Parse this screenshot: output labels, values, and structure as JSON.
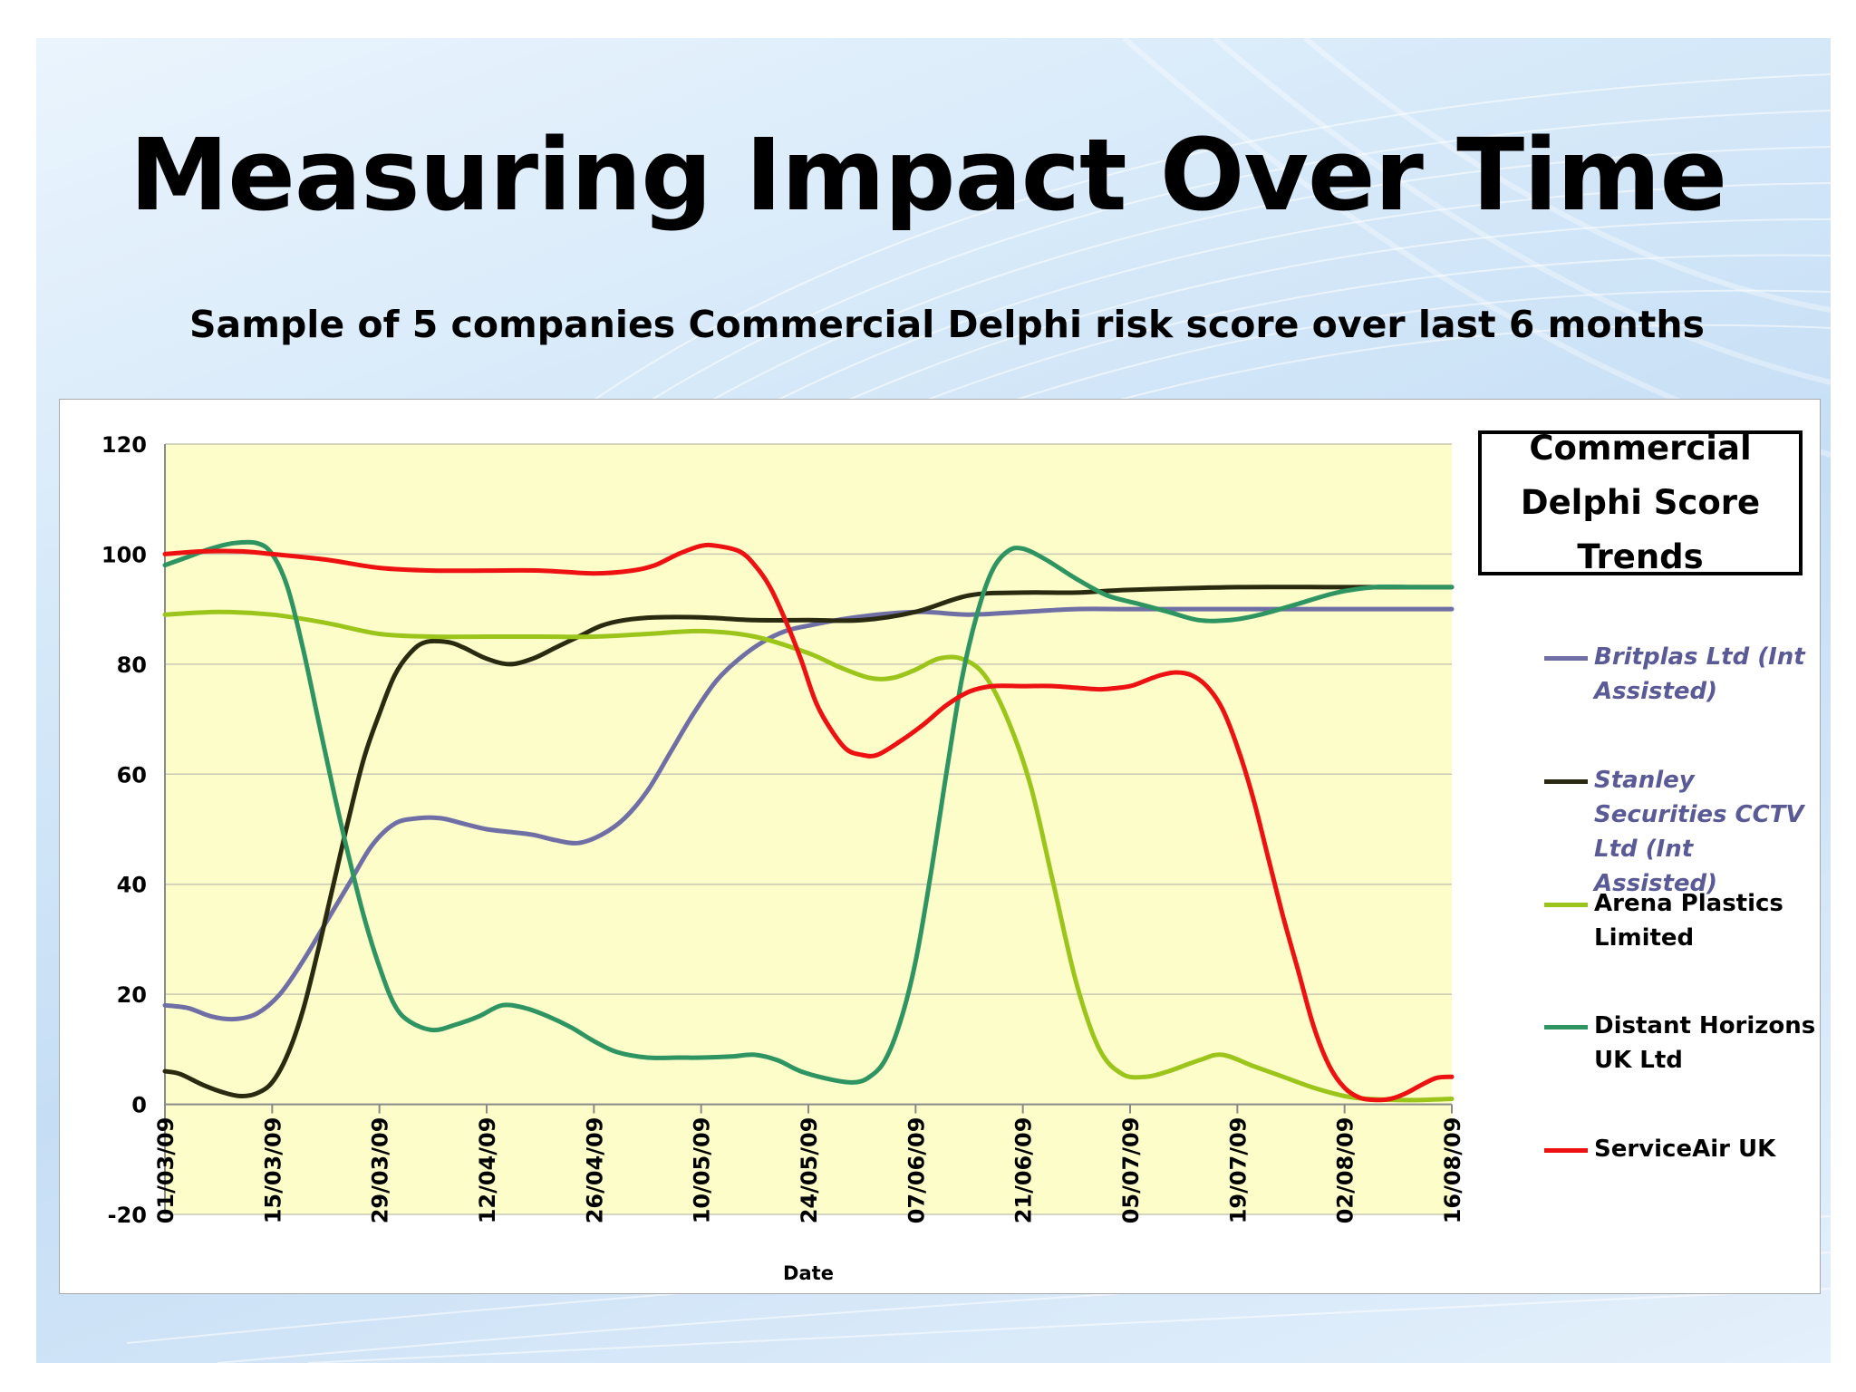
{
  "title": "Measuring Impact Over Time",
  "subtitle": "Sample of 5 companies Commercial Delphi risk score over last 6 months",
  "legend": {
    "title": "Commercial Delphi Score Trends"
  },
  "colors": {
    "plot_background": "#fdfdc9",
    "grid": "#c8c8b4",
    "britplas": "#6f6fa6",
    "stanley": "#2a2a10",
    "arena": "#9cc51c",
    "distant": "#2e9462",
    "serviceair": "#ee1111"
  },
  "chart_data": {
    "type": "line",
    "xlabel": "Date",
    "ylabel": "",
    "ylim": [
      -20,
      120
    ],
    "yticks": [
      -20,
      0,
      20,
      40,
      60,
      80,
      100,
      120
    ],
    "xticks": [
      "01/03/09",
      "15/03/09",
      "29/03/09",
      "12/04/09",
      "26/04/09",
      "10/05/09",
      "24/05/09",
      "07/06/09",
      "21/06/09",
      "05/07/09",
      "19/07/09",
      "02/08/09",
      "16/08/09"
    ],
    "x_range": [
      "01/03/09",
      "16/08/09"
    ],
    "grid": true,
    "legend_position": "right",
    "series": [
      {
        "name": "Britplas Ltd (Int Assisted)",
        "label_style": "italic",
        "color": "#6f6fa6",
        "points": [
          [
            "01/03/09",
            18
          ],
          [
            "04/03/09",
            17.5
          ],
          [
            "07/03/09",
            16
          ],
          [
            "10/03/09",
            15.5
          ],
          [
            "13/03/09",
            16.5
          ],
          [
            "16/03/09",
            20
          ],
          [
            "19/03/09",
            26
          ],
          [
            "22/03/09",
            33
          ],
          [
            "25/03/09",
            40
          ],
          [
            "28/03/09",
            47
          ],
          [
            "31/03/09",
            51
          ],
          [
            "03/04/09",
            52
          ],
          [
            "06/04/09",
            52
          ],
          [
            "09/04/09",
            51
          ],
          [
            "12/04/09",
            50
          ],
          [
            "15/04/09",
            49.5
          ],
          [
            "18/04/09",
            49
          ],
          [
            "21/04/09",
            48
          ],
          [
            "24/04/09",
            47.5
          ],
          [
            "27/04/09",
            49
          ],
          [
            "30/04/09",
            52
          ],
          [
            "03/05/09",
            57
          ],
          [
            "06/05/09",
            64
          ],
          [
            "09/05/09",
            71
          ],
          [
            "12/05/09",
            77
          ],
          [
            "15/05/09",
            81
          ],
          [
            "18/05/09",
            84
          ],
          [
            "21/05/09",
            86
          ],
          [
            "24/05/09",
            87
          ],
          [
            "30/05/09",
            88.5
          ],
          [
            "07/06/09",
            89.5
          ],
          [
            "14/06/09",
            89
          ],
          [
            "21/06/09",
            89.5
          ],
          [
            "28/06/09",
            90
          ],
          [
            "05/07/09",
            90
          ],
          [
            "19/07/09",
            90
          ],
          [
            "02/08/09",
            90
          ],
          [
            "16/08/09",
            90
          ]
        ]
      },
      {
        "name": "Stanley Securities CCTV Ltd (Int Assisted)",
        "label_style": "italic",
        "color": "#2a2a10",
        "points": [
          [
            "01/03/09",
            6
          ],
          [
            "03/03/09",
            5.5
          ],
          [
            "06/03/09",
            3.5
          ],
          [
            "09/03/09",
            2
          ],
          [
            "11/03/09",
            1.5
          ],
          [
            "13/03/09",
            2
          ],
          [
            "15/03/09",
            4
          ],
          [
            "17/03/09",
            9
          ],
          [
            "19/03/09",
            17
          ],
          [
            "21/03/09",
            28
          ],
          [
            "23/03/09",
            40
          ],
          [
            "25/03/09",
            52
          ],
          [
            "27/03/09",
            63
          ],
          [
            "29/03/09",
            71
          ],
          [
            "31/03/09",
            78
          ],
          [
            "02/04/09",
            82
          ],
          [
            "04/04/09",
            84
          ],
          [
            "07/04/09",
            84
          ],
          [
            "09/04/09",
            83
          ],
          [
            "12/04/09",
            81
          ],
          [
            "15/04/09",
            80
          ],
          [
            "18/04/09",
            81
          ],
          [
            "21/04/09",
            83
          ],
          [
            "24/04/09",
            85
          ],
          [
            "27/04/09",
            87
          ],
          [
            "30/04/09",
            88
          ],
          [
            "04/05/09",
            88.5
          ],
          [
            "10/05/09",
            88.5
          ],
          [
            "17/05/09",
            88
          ],
          [
            "24/05/09",
            88
          ],
          [
            "31/05/09",
            88
          ],
          [
            "07/06/09",
            89.5
          ],
          [
            "14/06/09",
            92.5
          ],
          [
            "21/06/09",
            93
          ],
          [
            "28/06/09",
            93
          ],
          [
            "05/07/09",
            93.5
          ],
          [
            "19/07/09",
            94
          ],
          [
            "02/08/09",
            94
          ],
          [
            "16/08/09",
            94
          ]
        ]
      },
      {
        "name": "Arena Plastics Limited",
        "label_style": "normal",
        "color": "#9cc51c",
        "points": [
          [
            "01/03/09",
            89
          ],
          [
            "08/03/09",
            89.5
          ],
          [
            "15/03/09",
            89
          ],
          [
            "22/03/09",
            87.5
          ],
          [
            "29/03/09",
            85.5
          ],
          [
            "05/04/09",
            85
          ],
          [
            "12/04/09",
            85
          ],
          [
            "19/04/09",
            85
          ],
          [
            "26/04/09",
            85
          ],
          [
            "03/05/09",
            85.5
          ],
          [
            "10/05/09",
            86
          ],
          [
            "17/05/09",
            85
          ],
          [
            "24/05/09",
            82
          ],
          [
            "28/05/09",
            79.5
          ],
          [
            "01/06/09",
            77.5
          ],
          [
            "04/06/09",
            77.5
          ],
          [
            "07/06/09",
            79
          ],
          [
            "10/06/09",
            81
          ],
          [
            "13/06/09",
            81
          ],
          [
            "16/06/09",
            78
          ],
          [
            "19/06/09",
            70
          ],
          [
            "22/06/09",
            58
          ],
          [
            "25/06/09",
            40
          ],
          [
            "28/06/09",
            22
          ],
          [
            "01/07/09",
            10
          ],
          [
            "04/07/09",
            5.5
          ],
          [
            "07/07/09",
            5
          ],
          [
            "10/07/09",
            6
          ],
          [
            "14/07/09",
            8
          ],
          [
            "17/07/09",
            9
          ],
          [
            "21/07/09",
            7
          ],
          [
            "25/07/09",
            5
          ],
          [
            "29/07/09",
            3
          ],
          [
            "02/08/09",
            1.5
          ],
          [
            "05/08/09",
            1
          ],
          [
            "09/08/09",
            0.8
          ],
          [
            "12/08/09",
            0.8
          ],
          [
            "16/08/09",
            1
          ]
        ]
      },
      {
        "name": "Distant Horizons UK Ltd",
        "label_style": "normal",
        "color": "#2e9462",
        "points": [
          [
            "01/03/09",
            98
          ],
          [
            "04/03/09",
            99.5
          ],
          [
            "07/03/09",
            101
          ],
          [
            "10/03/09",
            102
          ],
          [
            "13/03/09",
            102
          ],
          [
            "15/03/09",
            100
          ],
          [
            "17/03/09",
            94
          ],
          [
            "19/03/09",
            83
          ],
          [
            "21/03/09",
            70
          ],
          [
            "23/03/09",
            57
          ],
          [
            "25/03/09",
            45
          ],
          [
            "27/03/09",
            34
          ],
          [
            "29/03/09",
            25
          ],
          [
            "31/03/09",
            18
          ],
          [
            "02/04/09",
            15
          ],
          [
            "05/04/09",
            13.5
          ],
          [
            "08/04/09",
            14.5
          ],
          [
            "11/04/09",
            16
          ],
          [
            "14/04/09",
            18
          ],
          [
            "17/04/09",
            17.5
          ],
          [
            "20/04/09",
            16
          ],
          [
            "23/04/09",
            14
          ],
          [
            "26/04/09",
            11.5
          ],
          [
            "29/04/09",
            9.5
          ],
          [
            "03/05/09",
            8.5
          ],
          [
            "07/05/09",
            8.5
          ],
          [
            "10/05/09",
            8.5
          ],
          [
            "14/05/09",
            8.7
          ],
          [
            "17/05/09",
            9
          ],
          [
            "20/05/09",
            8
          ],
          [
            "23/05/09",
            6
          ],
          [
            "27/05/09",
            4.5
          ],
          [
            "30/05/09",
            4
          ],
          [
            "01/06/09",
            5
          ],
          [
            "03/06/09",
            8
          ],
          [
            "05/06/09",
            15
          ],
          [
            "07/06/09",
            26
          ],
          [
            "09/06/09",
            42
          ],
          [
            "11/06/09",
            60
          ],
          [
            "13/06/09",
            77
          ],
          [
            "15/06/09",
            89
          ],
          [
            "17/06/09",
            97
          ],
          [
            "19/06/09",
            100.5
          ],
          [
            "21/06/09",
            101
          ],
          [
            "24/06/09",
            99
          ],
          [
            "28/06/09",
            95.5
          ],
          [
            "02/07/09",
            92.5
          ],
          [
            "06/07/09",
            91
          ],
          [
            "10/07/09",
            89.5
          ],
          [
            "14/07/09",
            88
          ],
          [
            "18/07/09",
            88
          ],
          [
            "22/07/09",
            89
          ],
          [
            "27/07/09",
            91
          ],
          [
            "01/08/09",
            93
          ],
          [
            "06/08/09",
            94
          ],
          [
            "11/08/09",
            94
          ],
          [
            "16/08/09",
            94
          ]
        ]
      },
      {
        "name": "ServiceAir UK",
        "label_style": "normal",
        "color": "#ee1111",
        "points": [
          [
            "01/03/09",
            100
          ],
          [
            "06/03/09",
            100.5
          ],
          [
            "11/03/09",
            100.5
          ],
          [
            "15/03/09",
            100
          ],
          [
            "22/03/09",
            99
          ],
          [
            "29/03/09",
            97.5
          ],
          [
            "05/04/09",
            97
          ],
          [
            "12/04/09",
            97
          ],
          [
            "19/04/09",
            97
          ],
          [
            "26/04/09",
            96.5
          ],
          [
            "01/05/09",
            97
          ],
          [
            "04/05/09",
            98
          ],
          [
            "07/05/09",
            100
          ],
          [
            "10/05/09",
            101.5
          ],
          [
            "12/05/09",
            101.5
          ],
          [
            "15/05/09",
            100.5
          ],
          [
            "17/05/09",
            98
          ],
          [
            "19/05/09",
            94
          ],
          [
            "21/05/09",
            88
          ],
          [
            "23/05/09",
            81
          ],
          [
            "25/05/09",
            73
          ],
          [
            "27/05/09",
            68
          ],
          [
            "29/05/09",
            64.5
          ],
          [
            "31/05/09",
            63.5
          ],
          [
            "02/06/09",
            63.5
          ],
          [
            "05/06/09",
            66
          ],
          [
            "08/06/09",
            69
          ],
          [
            "11/06/09",
            72.5
          ],
          [
            "14/06/09",
            75
          ],
          [
            "17/06/09",
            76
          ],
          [
            "21/06/09",
            76
          ],
          [
            "25/06/09",
            76
          ],
          [
            "30/06/09",
            75.5
          ],
          [
            "02/07/09",
            75.5
          ],
          [
            "05/07/09",
            76
          ],
          [
            "07/07/09",
            77
          ],
          [
            "09/07/09",
            78
          ],
          [
            "11/07/09",
            78.5
          ],
          [
            "13/07/09",
            78
          ],
          [
            "15/07/09",
            76
          ],
          [
            "17/07/09",
            72
          ],
          [
            "19/07/09",
            65
          ],
          [
            "21/07/09",
            56
          ],
          [
            "23/07/09",
            45
          ],
          [
            "25/07/09",
            34
          ],
          [
            "27/07/09",
            24
          ],
          [
            "29/07/09",
            14
          ],
          [
            "31/07/09",
            7
          ],
          [
            "02/08/09",
            3
          ],
          [
            "04/08/09",
            1.2
          ],
          [
            "06/08/09",
            0.8
          ],
          [
            "08/08/09",
            1
          ],
          [
            "10/08/09",
            2
          ],
          [
            "12/08/09",
            3.5
          ],
          [
            "14/08/09",
            4.8
          ],
          [
            "16/08/09",
            5
          ]
        ]
      }
    ]
  }
}
